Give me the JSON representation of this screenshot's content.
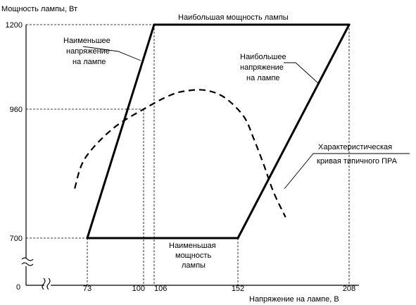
{
  "chart_data": {
    "type": "diagram",
    "ylabel": "Мощность лампы, Вт",
    "xlabel": "Напряжение на лампе, В",
    "origin_label": "0",
    "x_ticks": [
      73,
      100,
      106,
      152,
      208
    ],
    "y_ticks": [
      700,
      960,
      1200
    ],
    "parallelogram": {
      "min_voltage_line": {
        "x": [
          73,
          106
        ],
        "y": [
          700,
          1200
        ]
      },
      "max_power_line": {
        "x": [
          106,
          208
        ],
        "y": [
          1200,
          1200
        ]
      },
      "max_voltage_line": {
        "x": [
          152,
          208
        ],
        "y": [
          700,
          1200
        ]
      },
      "min_power_line": {
        "x": [
          73,
          152
        ],
        "y": [
          700,
          700
        ]
      }
    },
    "ballast_curve": {
      "x": [
        58,
        70,
        85,
        100,
        115,
        125,
        135,
        145,
        155,
        160,
        165,
        170,
        176
      ],
      "y": [
        800,
        860,
        920,
        960,
        1000,
        1013,
        1013,
        992,
        945,
        900,
        848,
        792,
        742
      ]
    },
    "reference_points": [
      {
        "x": 100,
        "y": 960
      }
    ],
    "annotations": {
      "max_power": "Наибольшая мощность лампы",
      "min_voltage": [
        "Наименьшее",
        "напряжение",
        "на лампе"
      ],
      "max_voltage": [
        "Наибольшее",
        "напряжение",
        "на лампе"
      ],
      "ballast": [
        "Характеристическая",
        "кривая типичного ПРА"
      ],
      "min_power": [
        "Наименьшая",
        "мощность",
        "лампы"
      ]
    }
  }
}
